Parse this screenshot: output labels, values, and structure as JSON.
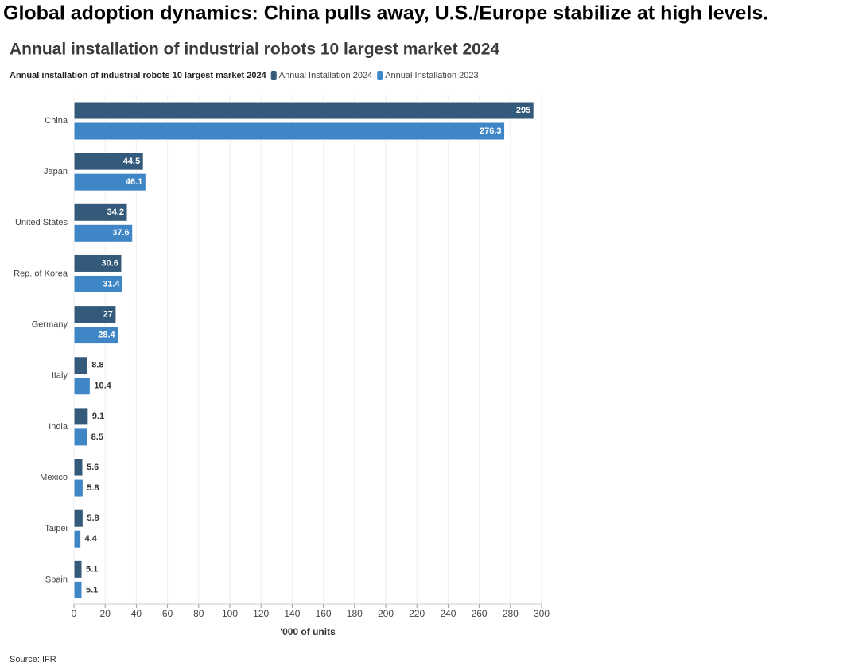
{
  "headline": "Global adoption dynamics: China pulls away, U.S./Europe stabilize at high levels.",
  "chart_data": {
    "type": "hbar",
    "title": "Annual installation of industrial robots 10 largest market 2024",
    "legend_title": "Annual installation of industrial robots 10 largest market 2024",
    "categories": [
      "China",
      "Japan",
      "United States",
      "Rep. of Korea",
      "Germany",
      "Italy",
      "India",
      "Mexico",
      "Taipei",
      "Spain"
    ],
    "series": [
      {
        "name": "Annual Installation 2024",
        "color": "#335a7a",
        "values": [
          295,
          44.5,
          34.2,
          30.6,
          27,
          8.8,
          9.1,
          5.6,
          5.8,
          5.1
        ]
      },
      {
        "name": "Annual Installation 2023",
        "color": "#3f86c6",
        "values": [
          276.3,
          46.1,
          37.6,
          31.4,
          28.4,
          10.4,
          8.5,
          5.8,
          4.4,
          5.1
        ]
      }
    ],
    "xlim": [
      0,
      300
    ],
    "xticks": [
      0,
      20,
      40,
      60,
      80,
      100,
      120,
      140,
      160,
      180,
      200,
      220,
      240,
      260,
      280,
      300
    ],
    "xlabel": "'000 of units",
    "grid": true,
    "source": "Source: IFR"
  }
}
